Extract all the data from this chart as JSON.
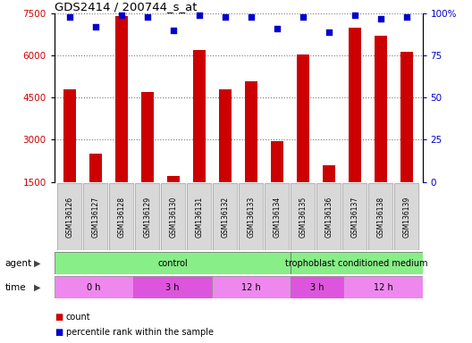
{
  "title": "GDS2414 / 200744_s_at",
  "samples": [
    "GSM136126",
    "GSM136127",
    "GSM136128",
    "GSM136129",
    "GSM136130",
    "GSM136131",
    "GSM136132",
    "GSM136133",
    "GSM136134",
    "GSM136135",
    "GSM136136",
    "GSM136137",
    "GSM136138",
    "GSM136139"
  ],
  "counts": [
    4800,
    2500,
    7400,
    4700,
    1700,
    6200,
    4800,
    5100,
    2950,
    6050,
    2100,
    7000,
    6700,
    6150
  ],
  "percentiles": [
    98,
    92,
    99,
    98,
    90,
    99,
    98,
    98,
    91,
    98,
    89,
    99,
    97,
    98
  ],
  "ylim_left": [
    1500,
    7500
  ],
  "ylim_right": [
    0,
    100
  ],
  "yticks_left": [
    1500,
    3000,
    4500,
    6000,
    7500
  ],
  "yticks_right": [
    0,
    25,
    50,
    75,
    100
  ],
  "bar_color": "#cc0000",
  "dot_color": "#0000cc",
  "bar_width": 0.5,
  "agent_groups": [
    {
      "label": "control",
      "start": 0,
      "end": 9,
      "color": "#88ee88"
    },
    {
      "label": "trophoblast conditioned medium",
      "start": 9,
      "end": 14,
      "color": "#88ee88"
    }
  ],
  "time_groups": [
    {
      "label": "0 h",
      "start": 0,
      "end": 3,
      "color": "#ee88ee"
    },
    {
      "label": "3 h",
      "start": 3,
      "end": 6,
      "color": "#dd55dd"
    },
    {
      "label": "12 h",
      "start": 6,
      "end": 9,
      "color": "#ee88ee"
    },
    {
      "label": "3 h",
      "start": 9,
      "end": 11,
      "color": "#dd55dd"
    },
    {
      "label": "12 h",
      "start": 11,
      "end": 14,
      "color": "#ee88ee"
    }
  ],
  "legend_count_color": "#cc0000",
  "legend_dot_color": "#0000cc",
  "grid_color": "#777777",
  "tick_bg_color": "#d8d8d8",
  "tick_border_color": "#aaaaaa"
}
